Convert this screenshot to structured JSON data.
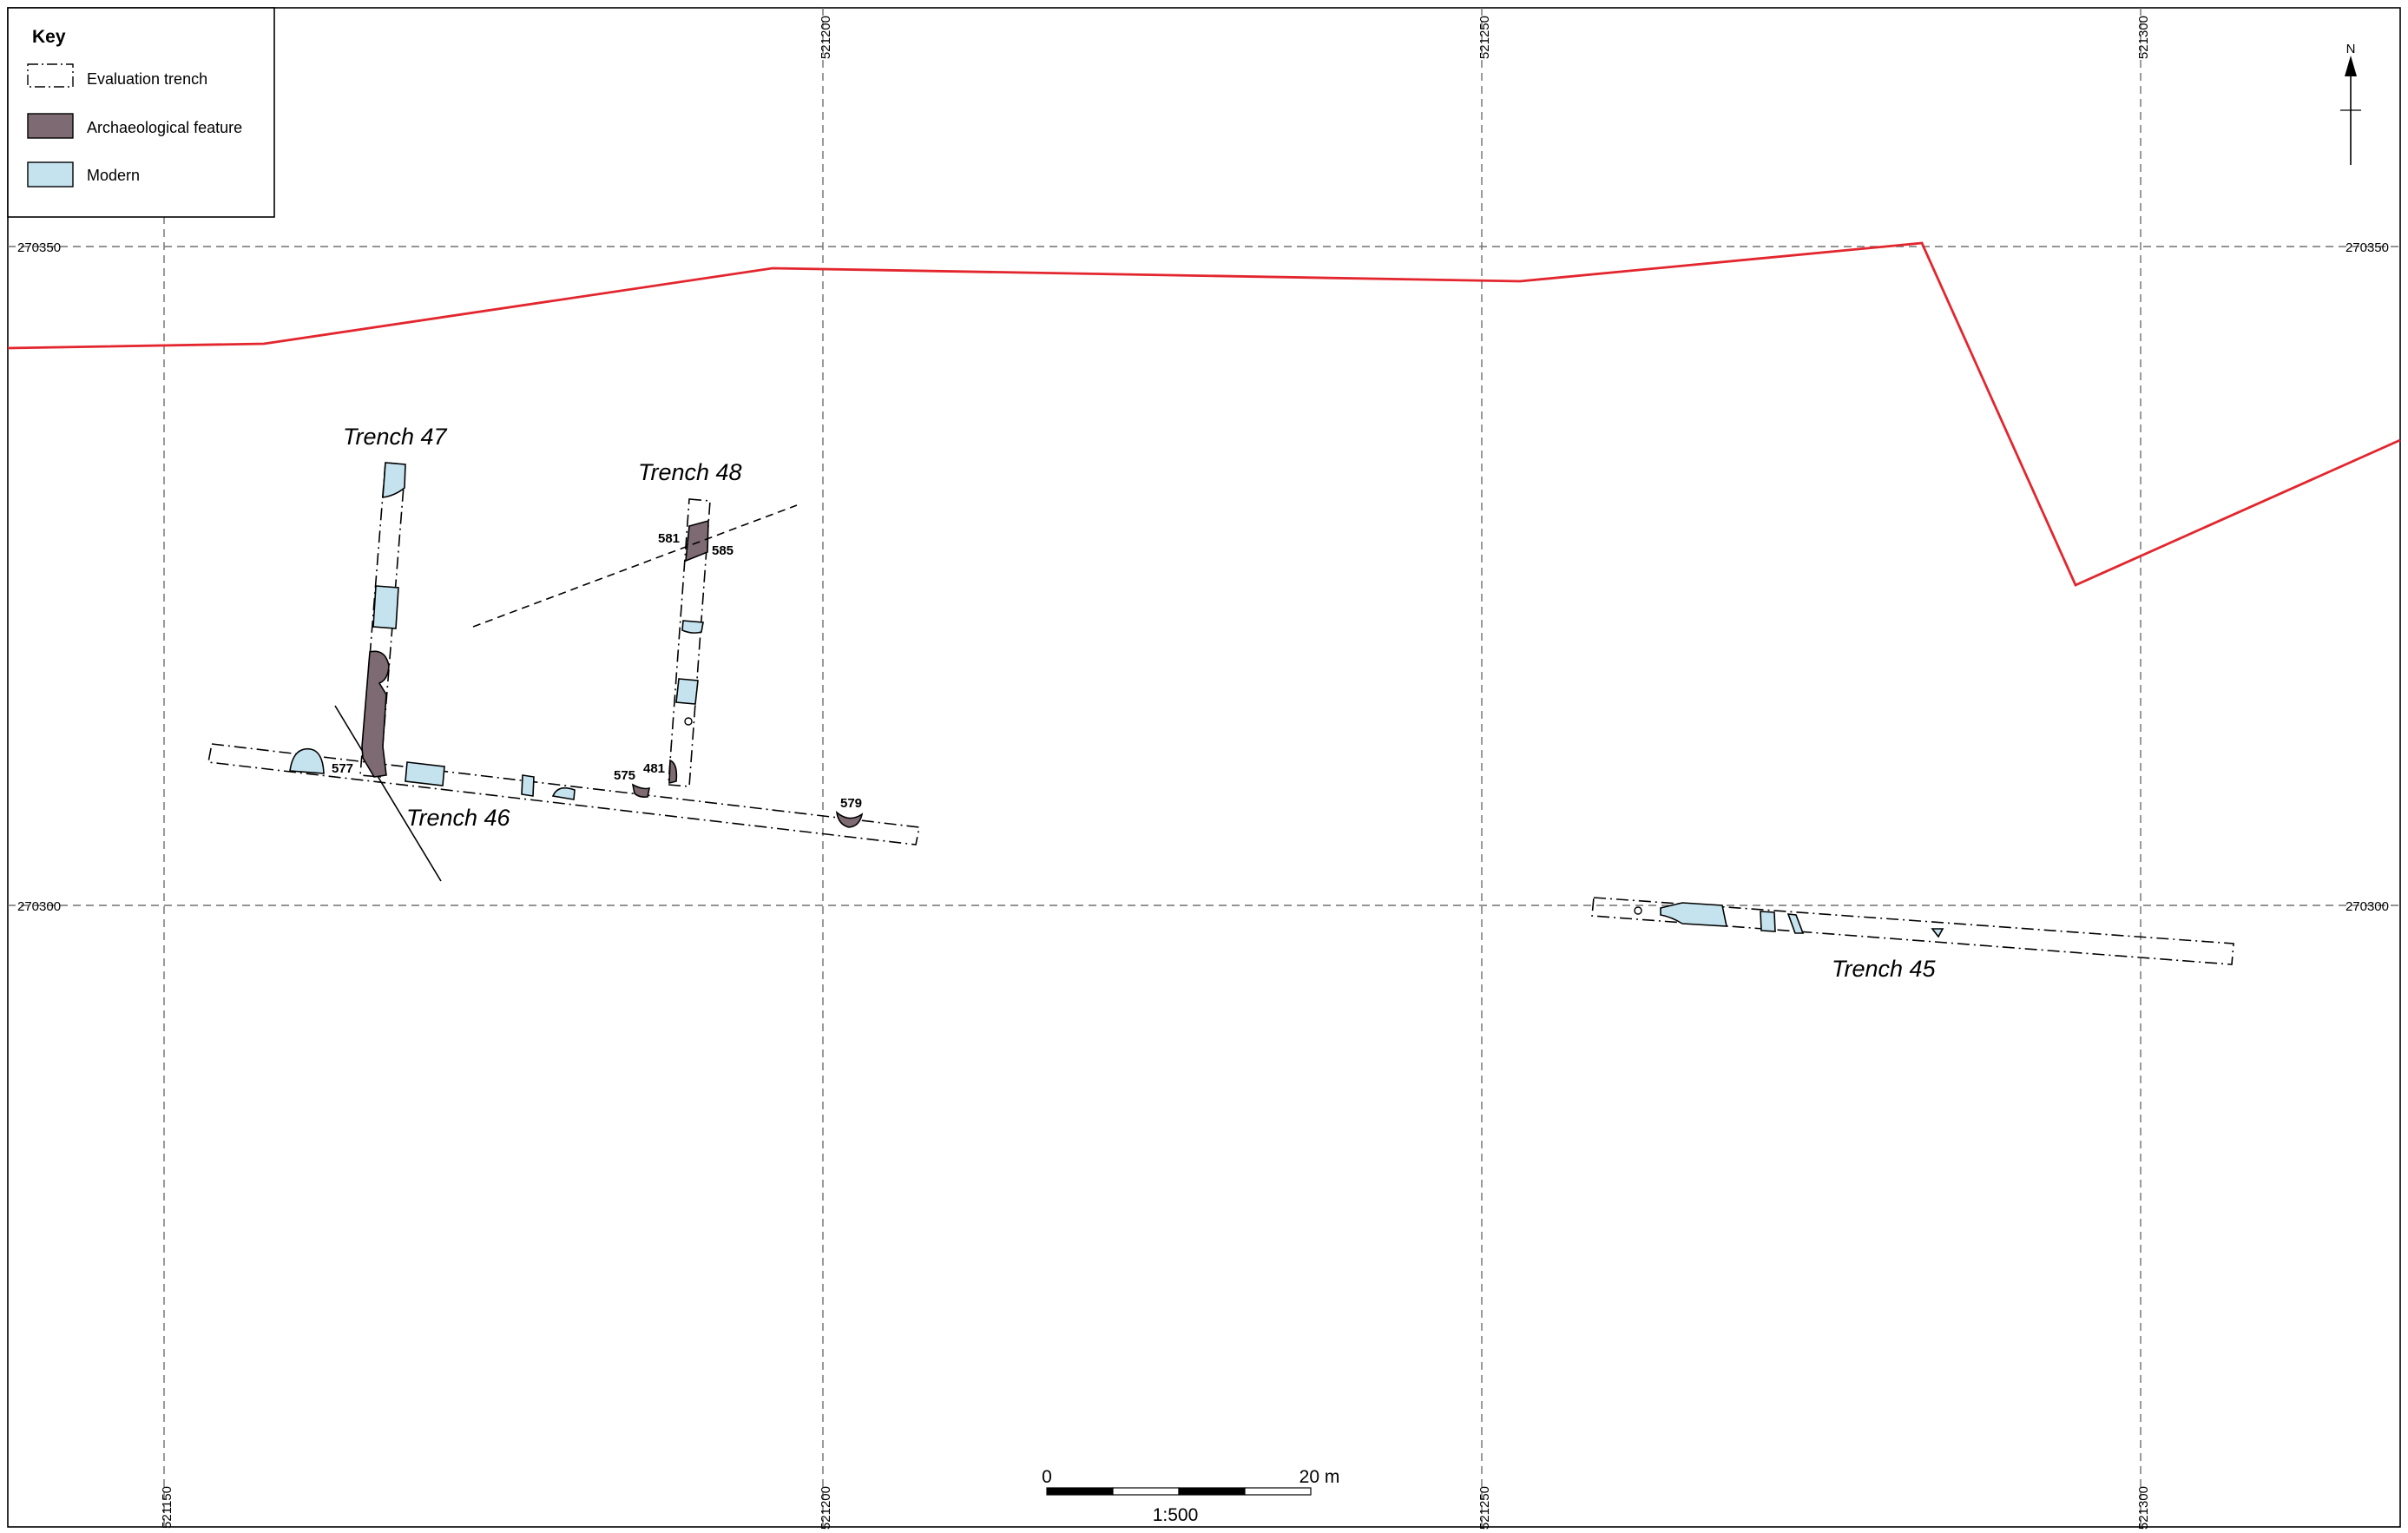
{
  "legend": {
    "title": "Key",
    "items": [
      {
        "label": "Evaluation trench",
        "symbol": "dash-dot-box"
      },
      {
        "label": "Archaeological feature",
        "symbol": "filled-box",
        "color": "#7d6a72"
      },
      {
        "label": "Modern",
        "symbol": "filled-box",
        "color": "#c5e3ee"
      }
    ]
  },
  "grid": {
    "eastings": [
      "521150",
      "521200",
      "521250",
      "521300"
    ],
    "northings": [
      "270350",
      "270300"
    ],
    "line_color": "#707070"
  },
  "boundary_color": "#e3262e",
  "trenches": {
    "t45": "Trench 45",
    "t46": "Trench 46",
    "t47": "Trench 47",
    "t48": "Trench 48"
  },
  "contexts": {
    "c577": "577",
    "c575": "575",
    "c481": "481",
    "c579": "579",
    "c581": "581",
    "c585": "585"
  },
  "north_arrow": {
    "label": "N",
    "icon": "north-arrow-icon"
  },
  "scale_bar": {
    "start": "0",
    "end": "20 m",
    "ratio": "1:500"
  }
}
